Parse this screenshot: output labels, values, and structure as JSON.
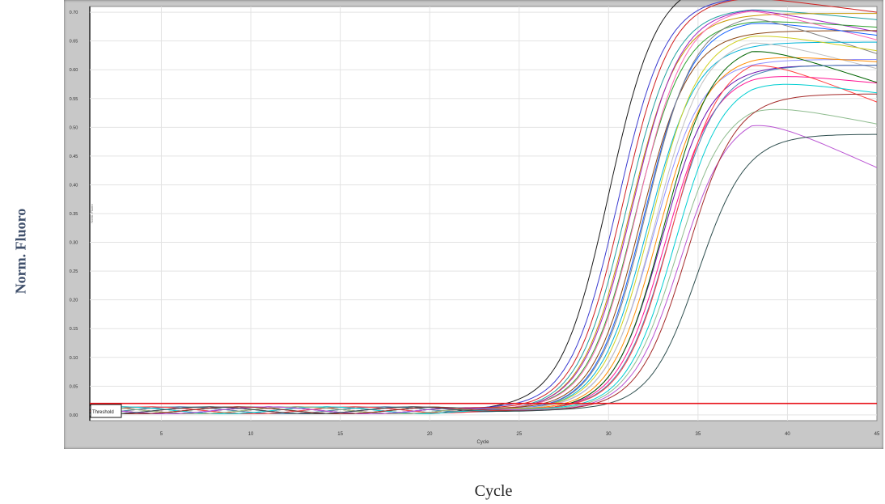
{
  "figure": {
    "outer_ylabel": "Norm. Fluoro",
    "outer_xlabel": "Cycle"
  },
  "chart_data": {
    "type": "line",
    "title": "",
    "xlabel": "Cycle",
    "ylabel": "Norm. Fluoro",
    "xlim": [
      1,
      45
    ],
    "ylim": [
      -0.01,
      0.71
    ],
    "x_ticks": [
      "5",
      "10",
      "15",
      "20",
      "25",
      "30",
      "35",
      "40",
      "45"
    ],
    "y_ticks": [
      "0.00",
      "0.05",
      "0.10",
      "0.15",
      "0.20",
      "0.25",
      "0.30",
      "0.35",
      "0.40",
      "0.45",
      "0.50",
      "0.55",
      "0.60",
      "0.65",
      "0.70"
    ],
    "grid": true,
    "threshold": {
      "label": "Threshold",
      "value": 0.02,
      "color": "#e8141c"
    },
    "series_colors": [
      "#1a1a1a",
      "#3c3cd0",
      "#d02020",
      "#20a0a0",
      "#c89600",
      "#a020c0",
      "#2ea02e",
      "#ff69b4",
      "#8b4513",
      "#1060ff",
      "#808080",
      "#00b4d8",
      "#d0d020",
      "#9090ff",
      "#c0c0c0",
      "#ff8c00",
      "#6a0dad",
      "#006400",
      "#ff1493",
      "#4682b4",
      "#ff4040",
      "#00ced1",
      "#8fbc8f",
      "#ba55d3",
      "#a52a2a",
      "#2f4f4f"
    ],
    "series": [
      {
        "ct": 30.0,
        "plateau": 0.75,
        "decline": 0.0
      },
      {
        "ct": 30.5,
        "plateau": 0.72,
        "decline": 0.0
      },
      {
        "ct": 30.8,
        "plateau": 0.72,
        "decline": 0.004
      },
      {
        "ct": 31.0,
        "plateau": 0.7,
        "decline": 0.003
      },
      {
        "ct": 31.2,
        "plateau": 0.69,
        "decline": 0.0
      },
      {
        "ct": 31.3,
        "plateau": 0.7,
        "decline": 0.006
      },
      {
        "ct": 31.5,
        "plateau": 0.68,
        "decline": 0.002
      },
      {
        "ct": 31.6,
        "plateau": 0.7,
        "decline": 0.008
      },
      {
        "ct": 31.8,
        "plateau": 0.66,
        "decline": 0.0
      },
      {
        "ct": 32.0,
        "plateau": 0.68,
        "decline": 0.004
      },
      {
        "ct": 32.1,
        "plateau": 0.69,
        "decline": 0.01
      },
      {
        "ct": 32.2,
        "plateau": 0.64,
        "decline": 0.0
      },
      {
        "ct": 32.4,
        "plateau": 0.66,
        "decline": 0.005
      },
      {
        "ct": 32.5,
        "plateau": 0.61,
        "decline": 0.0
      },
      {
        "ct": 32.6,
        "plateau": 0.65,
        "decline": 0.008
      },
      {
        "ct": 32.8,
        "plateau": 0.62,
        "decline": 0.002
      },
      {
        "ct": 33.0,
        "plateau": 0.6,
        "decline": 0.0
      },
      {
        "ct": 33.1,
        "plateau": 0.64,
        "decline": 0.01
      },
      {
        "ct": 33.2,
        "plateau": 0.59,
        "decline": 0.003
      },
      {
        "ct": 33.4,
        "plateau": 0.6,
        "decline": 0.0
      },
      {
        "ct": 33.5,
        "plateau": 0.62,
        "decline": 0.012
      },
      {
        "ct": 33.7,
        "plateau": 0.58,
        "decline": 0.004
      },
      {
        "ct": 33.8,
        "plateau": 0.54,
        "decline": 0.006
      },
      {
        "ct": 34.0,
        "plateau": 0.52,
        "decline": 0.014
      },
      {
        "ct": 34.4,
        "plateau": 0.55,
        "decline": 0.0
      },
      {
        "ct": 35.0,
        "plateau": 0.48,
        "decline": 0.0
      }
    ]
  }
}
